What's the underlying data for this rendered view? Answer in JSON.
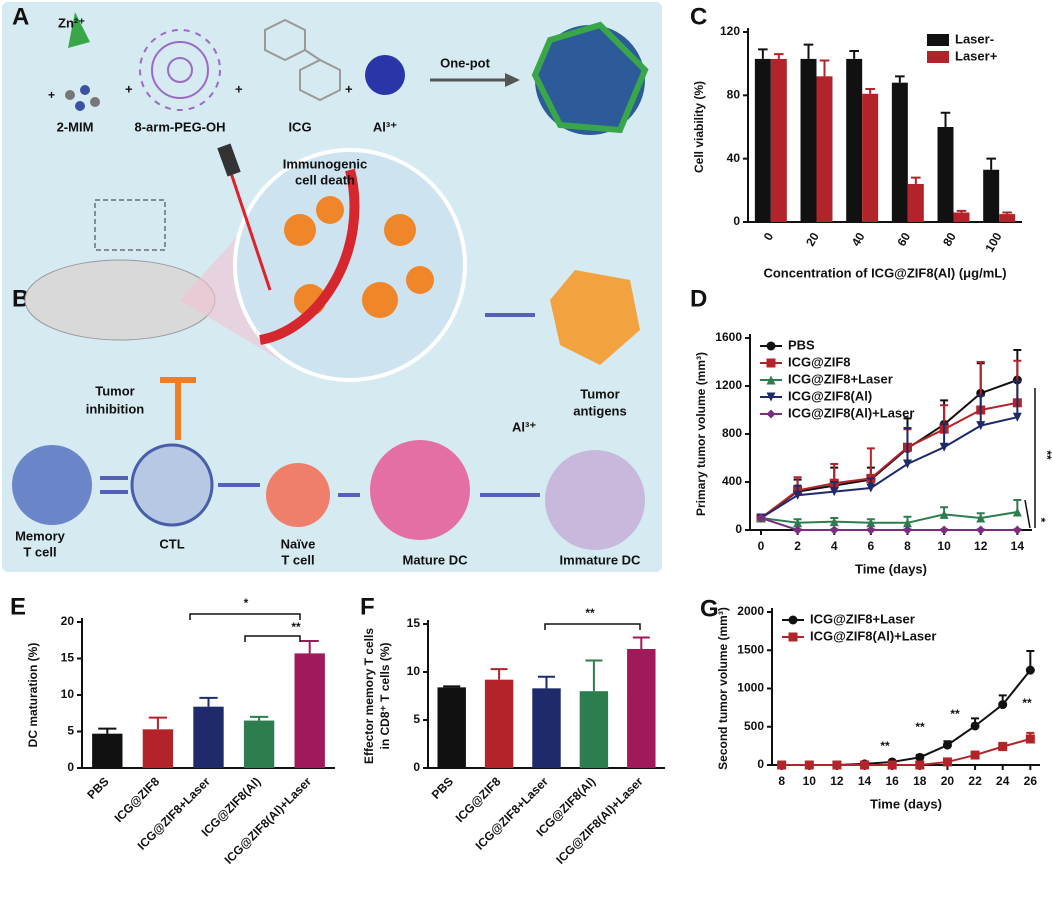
{
  "diagram": {
    "panel_a": "A",
    "panel_b": "B",
    "labels": [
      "Zn²⁺",
      "2-MIM",
      "8-arm-PEG-OH",
      "ICG",
      "Al³⁺",
      "One-pot",
      "Immunogenic",
      "cell death",
      "Tumor",
      "inhibition",
      "Tumor",
      "antigens",
      "Al³⁺",
      "Memory",
      "T cell",
      "CTL",
      "Naïve",
      "T cell",
      "Mature DC",
      "Immature DC"
    ]
  },
  "chart_data": [
    {
      "type": "bar",
      "panel": "C",
      "ylabel": "Cell viability (%)",
      "xlabel": "Concentration of ICG@ZIF8(Al) (μg/mL)",
      "categories": [
        "0",
        "20",
        "40",
        "60",
        "80",
        "100"
      ],
      "series": [
        {
          "name": "Laser-",
          "color": "#111111",
          "values": [
            103,
            103,
            103,
            88,
            60,
            33
          ],
          "errors": [
            6,
            9,
            5,
            4,
            9,
            7
          ]
        },
        {
          "name": "Laser+",
          "color": "#b2242a",
          "values": [
            103,
            92,
            81,
            24,
            6,
            5
          ],
          "errors": [
            3,
            10,
            3,
            4,
            1,
            1
          ]
        }
      ],
      "ylim": [
        0,
        120
      ],
      "yticks": [
        0,
        40,
        80,
        120
      ],
      "xtick_rotation": 60,
      "legend": "upper right"
    },
    {
      "type": "line",
      "panel": "D",
      "ylabel": "Primary tumor volume (mm³)",
      "xlabel": "Time (days)",
      "x": [
        0,
        2,
        4,
        6,
        8,
        10,
        12,
        14
      ],
      "series": [
        {
          "name": "PBS",
          "color": "#111111",
          "marker": "circle",
          "values": [
            100,
            320,
            370,
            420,
            680,
            880,
            1140,
            1250
          ],
          "errors": [
            20,
            100,
            150,
            100,
            250,
            200,
            250,
            250
          ]
        },
        {
          "name": "ICG@ZIF8",
          "color": "#b2242a",
          "marker": "square",
          "values": [
            100,
            330,
            390,
            430,
            690,
            840,
            1000,
            1060
          ],
          "errors": [
            20,
            110,
            160,
            250,
            150,
            200,
            400,
            350
          ]
        },
        {
          "name": "ICG@ZIF8+Laser",
          "color": "#2e7d4f",
          "marker": "triangle",
          "values": [
            100,
            60,
            70,
            60,
            60,
            130,
            100,
            150
          ],
          "errors": [
            20,
            30,
            30,
            30,
            50,
            60,
            40,
            100
          ]
        },
        {
          "name": "ICG@ZIF8(Al)",
          "color": "#1f2a6b",
          "marker": "triangle-down",
          "values": [
            100,
            290,
            320,
            350,
            550,
            690,
            870,
            940
          ],
          "errors": [
            20,
            80,
            80,
            80,
            300,
            200,
            250,
            300
          ]
        },
        {
          "name": "ICG@ZIF8(Al)+Laser",
          "color": "#7b2d7f",
          "marker": "diamond",
          "values": [
            100,
            0,
            0,
            0,
            0,
            0,
            0,
            0
          ],
          "errors": [
            10,
            5,
            5,
            5,
            5,
            5,
            5,
            5
          ]
        }
      ],
      "xlim": [
        -0.6,
        14.8
      ],
      "xticks": [
        0,
        2,
        4,
        6,
        8,
        10,
        12,
        14
      ],
      "ylim": [
        0,
        1600
      ],
      "yticks": [
        0,
        400,
        800,
        1200,
        1600
      ],
      "legend": "upper left",
      "annotations": [
        "**",
        "*"
      ]
    },
    {
      "type": "bar",
      "panel": "E",
      "ylabel": "DC maturation (%)",
      "categories": [
        "PBS",
        "ICG@ZIF8",
        "ICG@ZIF8+Laser",
        "ICG@ZIF8(Al)",
        "ICG@ZIF8(Al)+Laser"
      ],
      "values": [
        4.7,
        5.3,
        8.4,
        6.5,
        15.7
      ],
      "errors": [
        0.7,
        1.6,
        1.2,
        0.5,
        1.7
      ],
      "colors": [
        "#111111",
        "#b2242a",
        "#1f2a6b",
        "#2e7d4f",
        "#a0195a"
      ],
      "ylim": [
        0,
        20
      ],
      "yticks": [
        0,
        5,
        10,
        15,
        20
      ],
      "xtick_rotation": 45,
      "annotations": [
        "*",
        "**"
      ]
    },
    {
      "type": "bar",
      "panel": "F",
      "ylabel": "Effector memory T cells",
      "ylabel2": "in CD8⁺ T cells (%)",
      "categories": [
        "PBS",
        "ICG@ZIF8",
        "ICG@ZIF8+Laser",
        "ICG@ZIF8(Al)",
        "ICG@ZIF8(Al)+Laser"
      ],
      "values": [
        8.4,
        9.2,
        8.3,
        8.0,
        12.4
      ],
      "errors": [
        0.1,
        1.1,
        1.2,
        3.2,
        1.2
      ],
      "colors": [
        "#111111",
        "#b2242a",
        "#1f2a6b",
        "#2e7d4f",
        "#a0195a"
      ],
      "ylim": [
        0,
        15
      ],
      "yticks": [
        0,
        5,
        10,
        15
      ],
      "xtick_rotation": 45,
      "annotations": [
        "**"
      ]
    },
    {
      "type": "line",
      "panel": "G",
      "ylabel": "Second tumor volume (mm³)",
      "xlabel": "Time (days)",
      "x": [
        8,
        10,
        12,
        14,
        16,
        18,
        20,
        22,
        24,
        26
      ],
      "series": [
        {
          "name": "ICG@ZIF8+Laser",
          "color": "#111111",
          "marker": "circle",
          "values": [
            0,
            0,
            0,
            15,
            40,
            100,
            260,
            510,
            790,
            1240
          ],
          "errors": [
            0,
            0,
            0,
            10,
            20,
            30,
            50,
            100,
            120,
            250
          ]
        },
        {
          "name": "ICG@ZIF8(Al)+Laser",
          "color": "#b2242a",
          "marker": "square",
          "values": [
            0,
            0,
            0,
            0,
            0,
            0,
            40,
            130,
            240,
            340
          ],
          "errors": [
            0,
            0,
            0,
            0,
            0,
            0,
            20,
            40,
            50,
            80
          ]
        }
      ],
      "xlim": [
        7.3,
        26.7
      ],
      "xticks": [
        8,
        10,
        12,
        14,
        16,
        18,
        20,
        22,
        24,
        26
      ],
      "ylim": [
        0,
        2000
      ],
      "yticks": [
        0,
        500,
        1000,
        1500,
        2000
      ],
      "legend": "upper left",
      "annotations": [
        "**",
        "**",
        "**",
        "**"
      ]
    }
  ]
}
